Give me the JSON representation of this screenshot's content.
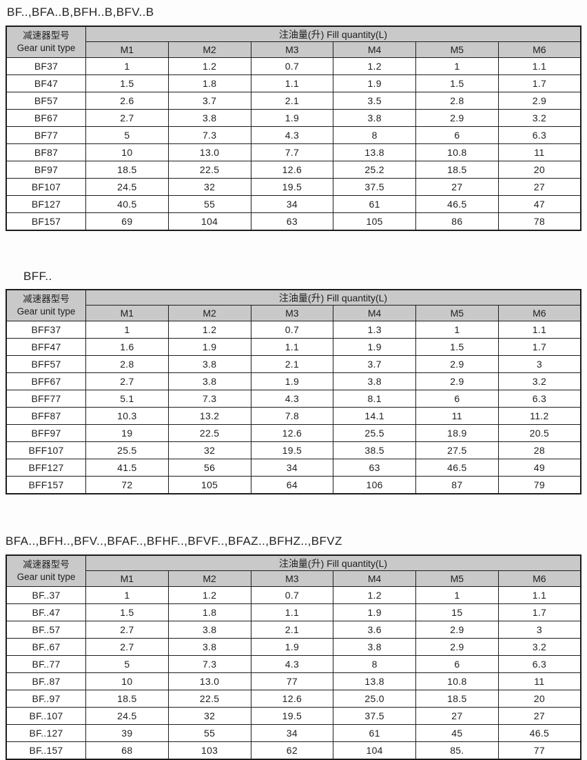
{
  "document": {
    "colors": {
      "header_bg": "#c9c9c9",
      "border": "#1b1b1b",
      "row_bg": "#ffffff"
    },
    "tables": [
      {
        "title": "BF..,BFA..B,BFH..B,BFV..B",
        "header": {
          "gear_unit_type_cn": "减速器型号",
          "gear_unit_type_en": "Gear unit type",
          "fill_quantity": "注油量(升) Fill quantity(L)",
          "columns": [
            "M1",
            "M2",
            "M3",
            "M4",
            "M5",
            "M6"
          ]
        },
        "rows": [
          [
            "BF37",
            "1",
            "1.2",
            "0.7",
            "1.2",
            "1",
            "1.1"
          ],
          [
            "BF47",
            "1.5",
            "1.8",
            "1.1",
            "1.9",
            "1.5",
            "1.7"
          ],
          [
            "BF57",
            "2.6",
            "3.7",
            "2.1",
            "3.5",
            "2.8",
            "2.9"
          ],
          [
            "BF67",
            "2.7",
            "3.8",
            "1.9",
            "3.8",
            "2.9",
            "3.2"
          ],
          [
            "BF77",
            "5",
            "7.3",
            "4.3",
            "8",
            "6",
            "6.3"
          ],
          [
            "BF87",
            "10",
            "13.0",
            "7.7",
            "13.8",
            "10.8",
            "11"
          ],
          [
            "BF97",
            "18.5",
            "22.5",
            "12.6",
            "25.2",
            "18.5",
            "20"
          ],
          [
            "BF107",
            "24.5",
            "32",
            "19.5",
            "37.5",
            "27",
            "27"
          ],
          [
            "BF127",
            "40.5",
            "55",
            "34",
            "61",
            "46.5",
            "47"
          ],
          [
            "BF157",
            "69",
            "104",
            "63",
            "105",
            "86",
            "78"
          ]
        ]
      },
      {
        "title": "BFF..",
        "header": {
          "gear_unit_type_cn": "减速器型号",
          "gear_unit_type_en": "Gear unit type",
          "fill_quantity": "注油量(升) Fill quantity(L)",
          "columns": [
            "M1",
            "M2",
            "M3",
            "M4",
            "M5",
            "M6"
          ]
        },
        "rows": [
          [
            "BFF37",
            "1",
            "1.2",
            "0.7",
            "1.3",
            "1",
            "1.1"
          ],
          [
            "BFF47",
            "1.6",
            "1.9",
            "1.1",
            "1.9",
            "1.5",
            "1.7"
          ],
          [
            "BFF57",
            "2.8",
            "3.8",
            "2.1",
            "3.7",
            "2.9",
            "3"
          ],
          [
            "BFF67",
            "2.7",
            "3.8",
            "1.9",
            "3.8",
            "2.9",
            "3.2"
          ],
          [
            "BFF77",
            "5.1",
            "7.3",
            "4.3",
            "8.1",
            "6",
            "6.3"
          ],
          [
            "BFF87",
            "10.3",
            "13.2",
            "7.8",
            "14.1",
            "11",
            "11.2"
          ],
          [
            "BFF97",
            "19",
            "22.5",
            "12.6",
            "25.5",
            "18.9",
            "20.5"
          ],
          [
            "BFF107",
            "25.5",
            "32",
            "19.5",
            "38.5",
            "27.5",
            "28"
          ],
          [
            "BFF127",
            "41.5",
            "56",
            "34",
            "63",
            "46.5",
            "49"
          ],
          [
            "BFF157",
            "72",
            "105",
            "64",
            "106",
            "87",
            "79"
          ]
        ]
      },
      {
        "title": "BFA..,BFH..,BFV..,BFAF..,BFHF..,BFVF..,BFAZ..,BFHZ..,BFVZ",
        "header": {
          "gear_unit_type_cn": "减速器型号",
          "gear_unit_type_en": "Gear unit type",
          "fill_quantity": "注油量(升) Fill quantity(L)",
          "columns": [
            "M1",
            "M2",
            "M3",
            "M4",
            "M5",
            "M6"
          ]
        },
        "rows": [
          [
            "BF..37",
            "1",
            "1.2",
            "0.7",
            "1.2",
            "1",
            "1.1"
          ],
          [
            "BF..47",
            "1.5",
            "1.8",
            "1.1",
            "1.9",
            "15",
            "1.7"
          ],
          [
            "BF..57",
            "2.7",
            "3.8",
            "2.1",
            "3.6",
            "2.9",
            "3"
          ],
          [
            "BF..67",
            "2.7",
            "3.8",
            "1.9",
            "3.8",
            "2.9",
            "3.2"
          ],
          [
            "BF..77",
            "5",
            "7.3",
            "4.3",
            "8",
            "6",
            "6.3"
          ],
          [
            "BF..87",
            "10",
            "13.0",
            "77",
            "13.8",
            "10.8",
            "11"
          ],
          [
            "BF..97",
            "18.5",
            "22.5",
            "12.6",
            "25.0",
            "18.5",
            "20"
          ],
          [
            "BF..107",
            "24.5",
            "32",
            "19.5",
            "37.5",
            "27",
            "27"
          ],
          [
            "BF..127",
            "39",
            "55",
            "34",
            "61",
            "45",
            "46.5"
          ],
          [
            "BF..157",
            "68",
            "103",
            "62",
            "104",
            "85.",
            "77"
          ]
        ]
      }
    ]
  }
}
